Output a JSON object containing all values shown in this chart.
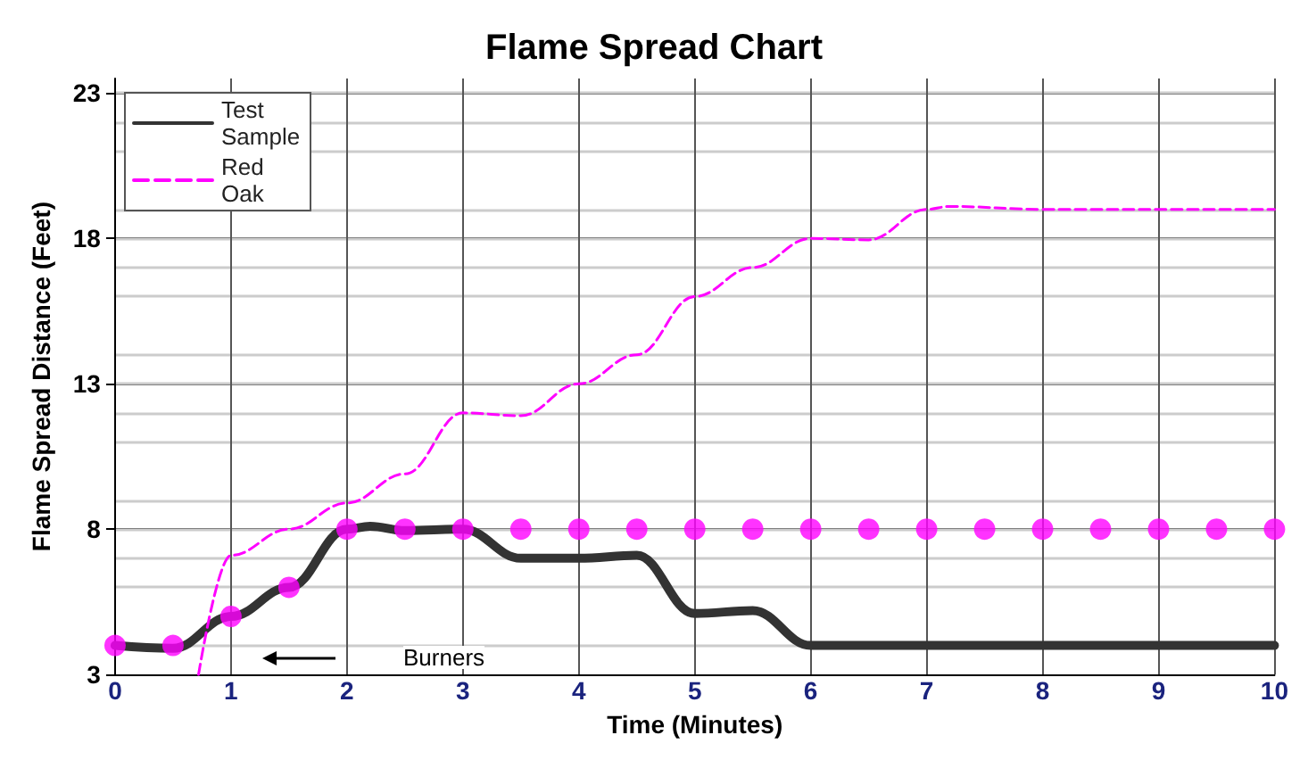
{
  "chart_data": {
    "type": "line",
    "title": "Flame Spread Chart",
    "xlabel": "Time (Minutes)",
    "ylabel": "Flame Spread Distance (Feet)",
    "annotations": [
      "Burners"
    ],
    "series": [
      {
        "name": "Test Sample",
        "color": "#333333",
        "line_style": "solid",
        "marker": "none",
        "x": [
          0,
          0.5,
          1,
          1.5,
          2,
          2.2,
          2.5,
          3,
          3.5,
          4,
          4.5,
          5,
          5.5,
          6,
          6.5,
          7,
          8,
          9,
          10
        ],
        "values": [
          4,
          3.9,
          5,
          6,
          8,
          8.1,
          7.95,
          8,
          7,
          7,
          7.1,
          5.1,
          5.2,
          4,
          4,
          4,
          4,
          4,
          4
        ]
      },
      {
        "name": "Red Oak",
        "color": "#ff00ff",
        "line_style": "dashed",
        "marker": "none",
        "x": [
          0.72,
          1,
          1.5,
          2,
          2.5,
          3,
          3.5,
          4,
          4.5,
          5,
          5.5,
          6,
          6.5,
          7,
          7.2,
          8,
          9,
          10
        ],
        "values": [
          3,
          7.1,
          8,
          8.9,
          9.9,
          12,
          11.9,
          13,
          14,
          16,
          17,
          18,
          17.95,
          19,
          19.1,
          19,
          19,
          19
        ]
      },
      {
        "type": "scatter",
        "color": "#ff00ff",
        "marker": "circle",
        "x": [
          0,
          0.5,
          1,
          1.5,
          2,
          2.5,
          3,
          3.5,
          4,
          4.5,
          5,
          5.5,
          6,
          6.5,
          7,
          7.5,
          8,
          8.5,
          9,
          9.5,
          10
        ],
        "values": [
          4,
          4,
          5,
          6,
          8,
          8,
          8,
          8,
          8,
          8,
          8,
          8,
          8,
          8,
          8,
          8,
          8,
          8,
          8,
          8,
          8
        ]
      }
    ],
    "xlim": [
      0,
      10
    ],
    "xticks": [
      0,
      1,
      2,
      3,
      4,
      5,
      6,
      7,
      8,
      9,
      10
    ],
    "ylim": [
      3,
      23.5
    ],
    "yticks": [
      3,
      8,
      13,
      18,
      23
    ],
    "grid": true,
    "legend": "top left"
  }
}
